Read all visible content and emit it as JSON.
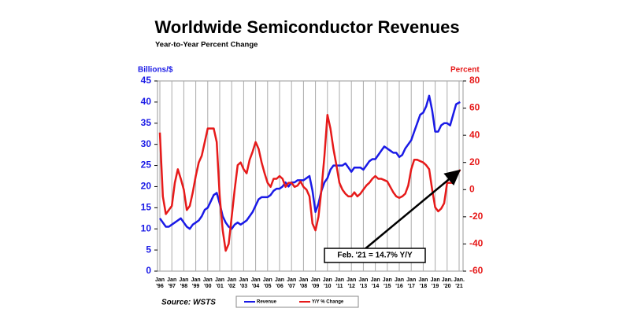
{
  "chart_data": {
    "type": "line",
    "title": "Worldwide Semiconductor Revenues",
    "subtitle": "Year-to-Year Percent Change",
    "y_label": "Billions/$",
    "y2_label": "Percent",
    "source": "Source: WSTS",
    "annotation": "Feb. '21 = 14.7% Y/Y",
    "grid": true,
    "x": [
      1996,
      1996.25,
      1996.5,
      1996.75,
      1997,
      1997.25,
      1997.5,
      1997.75,
      1998,
      1998.25,
      1998.5,
      1998.75,
      1999,
      1999.25,
      1999.5,
      1999.75,
      2000,
      2000.25,
      2000.5,
      2000.75,
      2001,
      2001.25,
      2001.5,
      2001.75,
      2002,
      2002.25,
      2002.5,
      2002.75,
      2003,
      2003.25,
      2003.5,
      2003.75,
      2004,
      2004.25,
      2004.5,
      2004.75,
      2005,
      2005.25,
      2005.5,
      2005.75,
      2006,
      2006.25,
      2006.5,
      2006.75,
      2007,
      2007.25,
      2007.5,
      2007.75,
      2008,
      2008.25,
      2008.5,
      2008.75,
      2009,
      2009.25,
      2009.5,
      2009.75,
      2010,
      2010.25,
      2010.5,
      2010.75,
      2011,
      2011.25,
      2011.5,
      2011.75,
      2012,
      2012.25,
      2012.5,
      2012.75,
      2013,
      2013.25,
      2013.5,
      2013.75,
      2014,
      2014.25,
      2014.5,
      2014.75,
      2015,
      2015.25,
      2015.5,
      2015.75,
      2016,
      2016.25,
      2016.5,
      2016.75,
      2017,
      2017.25,
      2017.5,
      2017.75,
      2018,
      2018.25,
      2018.5,
      2018.75,
      2019,
      2019.25,
      2019.5,
      2019.75,
      2020,
      2020.25,
      2020.5,
      2020.75,
      2021.083
    ],
    "xlim": [
      1996,
      2021.3
    ],
    "xticks": [
      {
        "value": 1996,
        "label": "Jan '96"
      },
      {
        "value": 1997,
        "label": "Jan '97"
      },
      {
        "value": 1998,
        "label": "Jan '98"
      },
      {
        "value": 1999,
        "label": "Jan '99"
      },
      {
        "value": 2000,
        "label": "Jan '00"
      },
      {
        "value": 2001,
        "label": "Jan '01"
      },
      {
        "value": 2002,
        "label": "Jan '02"
      },
      {
        "value": 2003,
        "label": "Jan '03"
      },
      {
        "value": 2004,
        "label": "Jan '04"
      },
      {
        "value": 2005,
        "label": "Jan '05"
      },
      {
        "value": 2006,
        "label": "Jan '06"
      },
      {
        "value": 2007,
        "label": "Jan '07"
      },
      {
        "value": 2008,
        "label": "Jan '08"
      },
      {
        "value": 2009,
        "label": "Jan '09"
      },
      {
        "value": 2010,
        "label": "Jan '10"
      },
      {
        "value": 2011,
        "label": "Jan '11"
      },
      {
        "value": 2012,
        "label": "Jan '12"
      },
      {
        "value": 2013,
        "label": "Jan '13"
      },
      {
        "value": 2014,
        "label": "Jan '14"
      },
      {
        "value": 2015,
        "label": "Jan '15"
      },
      {
        "value": 2016,
        "label": "Jan '16"
      },
      {
        "value": 2017,
        "label": "Jan '17"
      },
      {
        "value": 2018,
        "label": "Jan '18"
      },
      {
        "value": 2019,
        "label": "Jan '19"
      },
      {
        "value": 2020,
        "label": "Jan. '20"
      },
      {
        "value": 2021,
        "label": "Jan. '21"
      }
    ],
    "ylim": [
      0,
      45
    ],
    "yticks": [
      0,
      5,
      10,
      15,
      20,
      25,
      30,
      35,
      40,
      45
    ],
    "y2lim": [
      -60,
      80
    ],
    "y2ticks": [
      -60,
      -40,
      -20,
      0,
      20,
      40,
      60,
      80
    ],
    "series": [
      {
        "name": "Revenue",
        "color": "#1a1ae6",
        "values": [
          12.5,
          11.5,
          10.5,
          10.5,
          11,
          11.5,
          12,
          12.5,
          11.5,
          10.5,
          10,
          11,
          11.5,
          12,
          13,
          14.5,
          15,
          16.5,
          18,
          18.5,
          16,
          13,
          11.5,
          10.5,
          10,
          11,
          11.5,
          11,
          11.5,
          12,
          13,
          14,
          15.5,
          17,
          17.5,
          17.5,
          17.5,
          18,
          19,
          19.5,
          19.5,
          20,
          21,
          20,
          21,
          21,
          21.5,
          21.5,
          21.5,
          22,
          22.5,
          19,
          14,
          16,
          19,
          21,
          22,
          24,
          25,
          25,
          25,
          25,
          25.5,
          24.5,
          23.5,
          24.5,
          24.5,
          24.5,
          24,
          25,
          26,
          26.5,
          26.5,
          27.5,
          28.5,
          29.5,
          29,
          28.5,
          28,
          28,
          27,
          27.5,
          29,
          30,
          31,
          33,
          35,
          37,
          37.5,
          39,
          41.5,
          38,
          33,
          33,
          34.5,
          35,
          35,
          34.5,
          37,
          39.5,
          40
        ]
      },
      {
        "name": "Y/Y % Change",
        "color": "#e61a1a",
        "axis": "y2",
        "values": [
          42,
          -5,
          -18,
          -15,
          -12,
          5,
          15,
          8,
          0,
          -15,
          -12,
          -2,
          10,
          20,
          25,
          35,
          45,
          45,
          45,
          35,
          -5,
          -30,
          -45,
          -40,
          -20,
          0,
          18,
          20,
          15,
          12,
          22,
          28,
          35,
          30,
          20,
          12,
          5,
          2,
          8,
          8,
          10,
          8,
          2,
          5,
          5,
          2,
          3,
          6,
          2,
          0,
          -5,
          -25,
          -30,
          -20,
          0,
          25,
          55,
          45,
          30,
          18,
          5,
          0,
          -3,
          -5,
          -5,
          -2,
          -5,
          -3,
          0,
          3,
          5,
          8,
          10,
          8,
          8,
          7,
          6,
          2,
          -2,
          -5,
          -6,
          -5,
          -3,
          3,
          15,
          22,
          22,
          21,
          20,
          18,
          15,
          0,
          -13,
          -16,
          -14,
          -10,
          5,
          5,
          5,
          10,
          14.7
        ]
      }
    ]
  }
}
